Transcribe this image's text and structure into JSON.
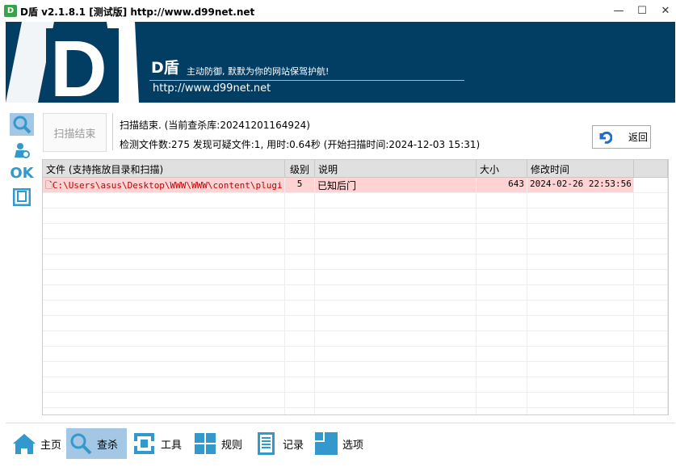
{
  "window": {
    "title": "D盾 v2.1.8.1 [测试版] http://www.d99net.net",
    "icon_text": "D",
    "minimize": "—",
    "maximize": "☐",
    "close": "✕"
  },
  "banner": {
    "logo": "D",
    "title": "D盾",
    "slogan": "主动防御, 默默为你的网站保驾护航!",
    "url": "http://www.d99net.net",
    "background": "#023d63"
  },
  "sidebar": [
    "search-icon",
    "user-icon",
    "ok-icon",
    "frame-icon"
  ],
  "sidebar_ok": "OK",
  "scan": {
    "button": "扫描结束",
    "status_line1": "扫描结束. (当前查杀库:20241201164924)",
    "status_line2": "检测文件数:275 发现可疑文件:1, 用时:0.64秒 (开始扫描时间:2024-12-03 15:31)",
    "back": "返回"
  },
  "table": {
    "headers": [
      "文件 (支持拖放目录和扫描)",
      "级别",
      "说明",
      "大小",
      "修改时间",
      ""
    ],
    "rows": [
      {
        "file": "C:\\Users\\asus\\Desktop\\WWW\\WWW\\content\\plugi...",
        "level": "5",
        "desc": "已知后门",
        "size": "643",
        "mtime": "2024-02-26 22:53:56"
      }
    ],
    "highlight_color": "#ffd3d3"
  },
  "nav": [
    {
      "label": "主页",
      "icon": "home-icon"
    },
    {
      "label": "查杀",
      "icon": "search-icon",
      "active": true
    },
    {
      "label": "工具",
      "icon": "tools-icon"
    },
    {
      "label": "规则",
      "icon": "grid-icon"
    },
    {
      "label": "记录",
      "icon": "list-icon"
    },
    {
      "label": "选项",
      "icon": "options-icon"
    }
  ],
  "accent": "#3399cc"
}
